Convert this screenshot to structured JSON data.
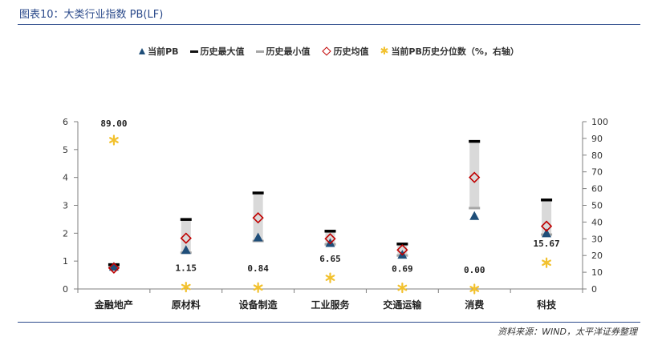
{
  "header": {
    "title": "图表10：大类行业指数 PB(LF)"
  },
  "legend": [
    {
      "key": "current",
      "label": "当前PB"
    },
    {
      "key": "max",
      "label": "历史最大值"
    },
    {
      "key": "min",
      "label": "历史最小值"
    },
    {
      "key": "mean",
      "label": "历史均值"
    },
    {
      "key": "pct",
      "label": "当前PB历史分位数（%，右轴）"
    }
  ],
  "chart_data": {
    "type": "range-marker",
    "categories": [
      "金融地产",
      "原材料",
      "设备制造",
      "工业服务",
      "交通运输",
      "消费",
      "科技"
    ],
    "series": [
      {
        "name": "当前PB",
        "values": [
          0.8,
          1.4,
          1.85,
          1.65,
          1.23,
          2.62,
          2.0
        ]
      },
      {
        "name": "历史最大值",
        "values": [
          0.88,
          2.5,
          3.45,
          2.08,
          1.62,
          5.3,
          3.2
        ]
      },
      {
        "name": "历史最小值",
        "values": [
          0.78,
          1.3,
          1.72,
          1.6,
          1.2,
          2.9,
          1.95
        ]
      },
      {
        "name": "历史均值",
        "values": [
          0.75,
          1.82,
          2.55,
          1.8,
          1.4,
          4.0,
          2.25
        ]
      },
      {
        "name": "当前PB历史分位数（%，右轴）",
        "axis": "right",
        "values": [
          89.0,
          1.15,
          0.84,
          6.65,
          0.69,
          0.0,
          15.67
        ]
      }
    ],
    "pct_labels": [
      "89.00",
      "1.15",
      "0.84",
      "6.65",
      "0.69",
      "0.00",
      "15.67"
    ],
    "y_left": {
      "range": [
        0,
        6
      ],
      "ticks": [
        "0",
        "1",
        "2",
        "3",
        "4",
        "5",
        "6"
      ]
    },
    "y_right": {
      "range": [
        0,
        100
      ],
      "ticks": [
        "0",
        "10",
        "20",
        "30",
        "40",
        "50",
        "60",
        "70",
        "80",
        "90",
        "100"
      ]
    },
    "colors": {
      "current": "#1f4e79",
      "max": "#000000",
      "min": "#a6a6a6",
      "mean": "#c00000",
      "pct": "#f2c12e",
      "range": "#d9d9d9"
    }
  },
  "footer": {
    "source": "资料来源：WIND，太平洋证券整理"
  }
}
